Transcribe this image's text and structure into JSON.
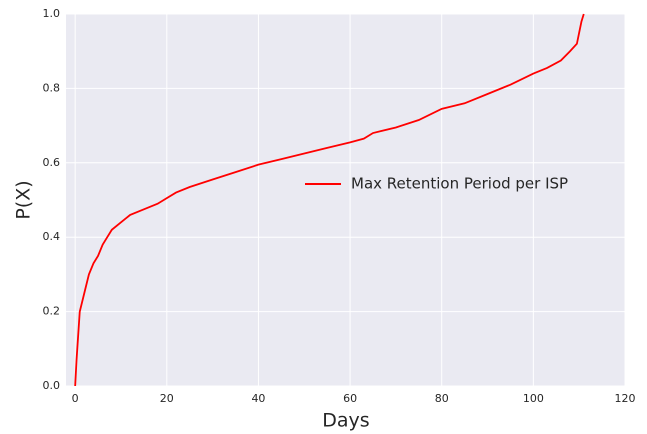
{
  "chart_data": {
    "type": "line",
    "xlabel": "Days",
    "ylabel": "P(X)",
    "x": [
      0,
      0.3,
      1,
      2,
      3,
      4,
      5,
      6,
      7,
      8,
      10,
      12,
      15,
      18,
      20,
      22,
      25,
      30,
      35,
      40,
      45,
      50,
      55,
      60,
      63,
      65,
      70,
      75,
      80,
      85,
      90,
      95,
      100,
      103,
      106,
      108,
      109.5,
      110,
      110.5,
      111
    ],
    "series": [
      {
        "name": "Max Retention Period per ISP",
        "color": "#ff0000",
        "values": [
          0,
          0.07,
          0.2,
          0.25,
          0.3,
          0.33,
          0.35,
          0.38,
          0.4,
          0.42,
          0.44,
          0.46,
          0.475,
          0.49,
          0.505,
          0.52,
          0.535,
          0.555,
          0.575,
          0.595,
          0.61,
          0.625,
          0.64,
          0.655,
          0.665,
          0.68,
          0.695,
          0.715,
          0.745,
          0.76,
          0.785,
          0.81,
          0.84,
          0.855,
          0.875,
          0.9,
          0.92,
          0.95,
          0.98,
          1.0
        ]
      }
    ],
    "xlim": [
      -2,
      120
    ],
    "ylim": [
      0,
      1
    ],
    "xticks": [
      0,
      20,
      40,
      60,
      80,
      100,
      120
    ],
    "yticks": [
      {
        "value": 0,
        "label": "0.0"
      },
      {
        "value": 0.2,
        "label": "0.2"
      },
      {
        "value": 0.4,
        "label": "0.4"
      },
      {
        "value": 0.6,
        "label": "0.6"
      },
      {
        "value": 0.8,
        "label": "0.8"
      },
      {
        "value": 1,
        "label": "1.0"
      }
    ],
    "grid": true,
    "legend": "center right"
  }
}
